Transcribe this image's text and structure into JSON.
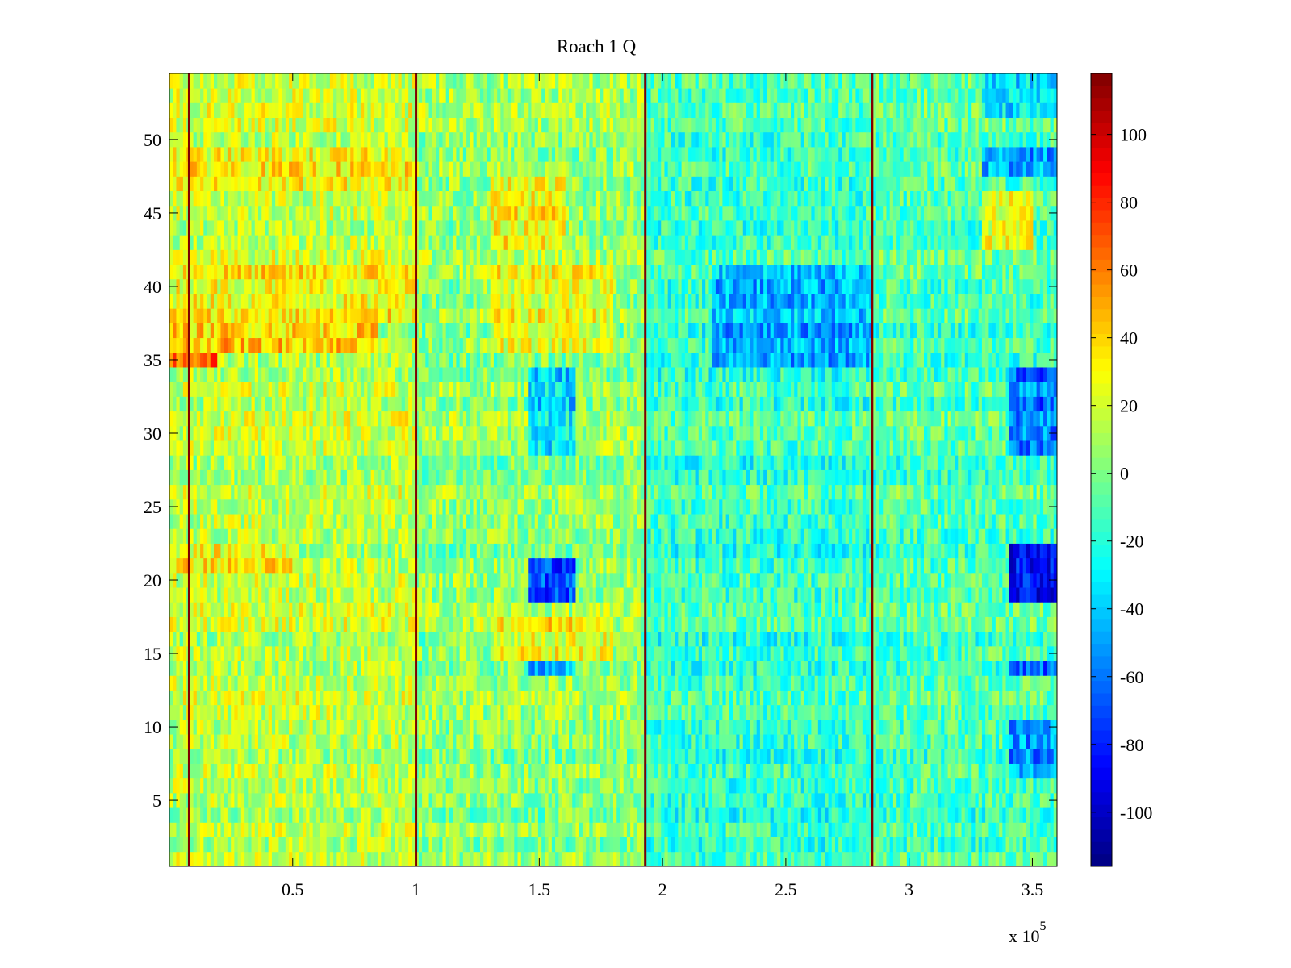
{
  "chart_data": {
    "type": "heatmap",
    "title": "Roach 1 Q",
    "xlabel": "",
    "ylabel": "",
    "x_exponent_label": "x 10",
    "x_exponent_power": "5",
    "xlim": [
      0,
      3.6
    ],
    "ylim": [
      0.5,
      54.5
    ],
    "rows": 54,
    "x_ticks": [
      0.5,
      1,
      1.5,
      2,
      2.5,
      3,
      3.5
    ],
    "x_tick_labels": [
      "0.5",
      "1",
      "1.5",
      "2",
      "2.5",
      "3",
      "3.5"
    ],
    "y_ticks": [
      5,
      10,
      15,
      20,
      25,
      30,
      35,
      40,
      45,
      50
    ],
    "y_tick_labels": [
      "5",
      "10",
      "15",
      "20",
      "25",
      "30",
      "35",
      "40",
      "45",
      "50"
    ],
    "colorbar": {
      "limits": [
        -116,
        118
      ],
      "ticks": [
        -100,
        -80,
        -60,
        -40,
        -20,
        0,
        20,
        40,
        60,
        80,
        100
      ],
      "tick_labels": [
        "-100",
        "-80",
        "-60",
        "-40",
        "-20",
        "0",
        "20",
        "40",
        "60",
        "80",
        "100"
      ],
      "colormap": "jet"
    },
    "vertical_markers": {
      "x": [
        0.08,
        1.0,
        1.93,
        2.85
      ],
      "value": 118
    },
    "segments": [
      {
        "x_range": [
          0,
          1.0
        ],
        "mean_value": 15
      },
      {
        "x_range": [
          1.0,
          1.93
        ],
        "mean_value": 5
      },
      {
        "x_range": [
          1.93,
          2.85
        ],
        "mean_value": -15
      },
      {
        "x_range": [
          2.85,
          3.6
        ],
        "mean_value": -10
      }
    ],
    "regions": [
      {
        "x_range": [
          0,
          0.2
        ],
        "y_range": [
          34.5,
          38.5
        ],
        "value": 70
      },
      {
        "x_range": [
          0,
          0.85
        ],
        "y_range": [
          36,
          38
        ],
        "value": 45
      },
      {
        "x_range": [
          0,
          1.0
        ],
        "y_range": [
          38,
          41
        ],
        "value": 30
      },
      {
        "x_range": [
          0,
          1.0
        ],
        "y_range": [
          47,
          49
        ],
        "value": 30
      },
      {
        "x_range": [
          0,
          0.5
        ],
        "y_range": [
          20.5,
          22
        ],
        "value": 35
      },
      {
        "x_range": [
          1.45,
          1.65
        ],
        "y_range": [
          18.5,
          21
        ],
        "value": -70
      },
      {
        "x_range": [
          1.45,
          1.65
        ],
        "y_range": [
          28.5,
          34.5
        ],
        "value": -35
      },
      {
        "x_range": [
          1.45,
          1.65
        ],
        "y_range": [
          13.5,
          14.5
        ],
        "value": -40
      },
      {
        "x_range": [
          1.3,
          1.8
        ],
        "y_range": [
          14.5,
          17
        ],
        "value": 30
      },
      {
        "x_range": [
          1.3,
          1.6
        ],
        "y_range": [
          43,
          47
        ],
        "value": 30
      },
      {
        "x_range": [
          1.3,
          1.8
        ],
        "y_range": [
          36,
          41
        ],
        "value": 25
      },
      {
        "x_range": [
          2.2,
          2.85
        ],
        "y_range": [
          35,
          41
        ],
        "value": -45
      },
      {
        "x_range": [
          3.4,
          3.6
        ],
        "y_range": [
          18.5,
          22.5
        ],
        "value": -85
      },
      {
        "x_range": [
          3.4,
          3.6
        ],
        "y_range": [
          28.5,
          34.5
        ],
        "value": -60
      },
      {
        "x_range": [
          3.4,
          3.6
        ],
        "y_range": [
          13.5,
          14.5
        ],
        "value": -60
      },
      {
        "x_range": [
          3.4,
          3.6
        ],
        "y_range": [
          7,
          10
        ],
        "value": -50
      },
      {
        "x_range": [
          3.3,
          3.6
        ],
        "y_range": [
          47.5,
          49
        ],
        "value": -50
      },
      {
        "x_range": [
          3.3,
          3.6
        ],
        "y_range": [
          52,
          54.5
        ],
        "value": -40
      },
      {
        "x_range": [
          3.3,
          3.5
        ],
        "y_range": [
          43,
          46
        ],
        "value": 25
      }
    ],
    "noise_amplitude": 22,
    "grid": false,
    "legend": "none"
  }
}
